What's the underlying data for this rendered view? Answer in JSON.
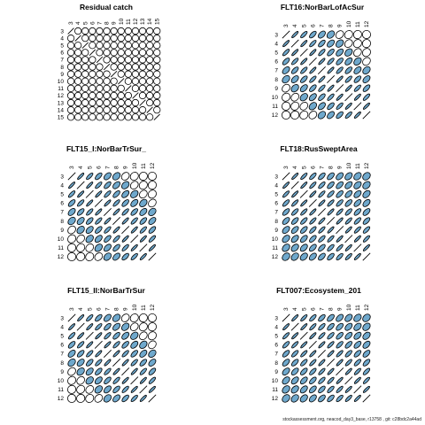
{
  "footer": "stockassessment.org, neacod_day3_base, r13758 , git: c28bdc2a44ad",
  "colors": {
    "shade": "#6fa8cc",
    "outline": "#000000",
    "background": "#ffffff"
  },
  "chart_data": [
    {
      "type": "correlation-ellipse-matrix",
      "title": "Residual catch",
      "ages": [
        3,
        4,
        5,
        6,
        7,
        8,
        9,
        10,
        11,
        12,
        13,
        14,
        15
      ],
      "lower_correlations": [
        [
          0.0
        ],
        [
          0.0,
          0.0
        ],
        [
          0.0,
          0.0,
          0.0
        ],
        [
          0.0,
          0.0,
          0.0,
          0.0
        ],
        [
          0.0,
          0.0,
          0.0,
          0.0,
          0.0
        ],
        [
          0.0,
          0.0,
          0.0,
          0.0,
          0.0,
          0.0
        ],
        [
          0.0,
          0.0,
          0.0,
          0.0,
          0.0,
          0.0,
          0.0
        ],
        [
          0.0,
          0.0,
          0.0,
          0.0,
          0.0,
          0.0,
          0.0,
          0.0
        ],
        [
          0.0,
          0.0,
          0.0,
          0.0,
          0.0,
          0.0,
          0.0,
          0.0,
          0.0
        ],
        [
          0.0,
          0.0,
          0.0,
          0.0,
          0.0,
          0.0,
          0.0,
          0.0,
          0.0,
          0.0
        ],
        [
          0.0,
          0.0,
          0.0,
          0.0,
          0.0,
          0.0,
          0.0,
          0.0,
          0.0,
          0.0,
          0.0
        ],
        [
          0.0,
          0.0,
          0.0,
          0.0,
          0.0,
          0.0,
          0.0,
          0.0,
          0.0,
          0.0,
          0.0,
          0.0
        ]
      ]
    },
    {
      "type": "correlation-ellipse-matrix",
      "title": "FLT16:NorBarLofAcSur",
      "ages": [
        3,
        4,
        5,
        6,
        7,
        8,
        9,
        10,
        11,
        12
      ],
      "lower_correlations": [
        [
          0.92
        ],
        [
          0.85,
          0.92
        ],
        [
          0.75,
          0.85,
          0.92
        ],
        [
          0.6,
          0.75,
          0.85,
          0.92
        ],
        [
          0.45,
          0.6,
          0.75,
          0.85,
          0.92
        ],
        [
          0.3,
          0.45,
          0.6,
          0.75,
          0.85,
          0.92
        ],
        [
          0.15,
          0.3,
          0.45,
          0.6,
          0.75,
          0.85,
          0.92
        ],
        [
          0.05,
          0.15,
          0.3,
          0.45,
          0.6,
          0.75,
          0.85,
          0.92
        ],
        [
          0.0,
          0.05,
          0.15,
          0.3,
          0.45,
          0.6,
          0.75,
          0.85,
          0.92
        ]
      ]
    },
    {
      "type": "correlation-ellipse-matrix",
      "title": "FLT15_I:NorBarTrSur_",
      "ages": [
        3,
        4,
        5,
        6,
        7,
        8,
        9,
        10,
        11,
        12
      ],
      "lower_correlations": [
        [
          0.92
        ],
        [
          0.85,
          0.92
        ],
        [
          0.75,
          0.85,
          0.92
        ],
        [
          0.6,
          0.75,
          0.85,
          0.92
        ],
        [
          0.45,
          0.6,
          0.75,
          0.85,
          0.92
        ],
        [
          0.3,
          0.45,
          0.6,
          0.75,
          0.85,
          0.92
        ],
        [
          0.15,
          0.3,
          0.45,
          0.6,
          0.75,
          0.85,
          0.92
        ],
        [
          0.05,
          0.15,
          0.3,
          0.45,
          0.6,
          0.75,
          0.85,
          0.92
        ],
        [
          0.0,
          0.05,
          0.15,
          0.3,
          0.45,
          0.6,
          0.75,
          0.85,
          0.92
        ]
      ]
    },
    {
      "type": "correlation-ellipse-matrix",
      "title": "FLT18:RusSweptArea",
      "ages": [
        3,
        4,
        5,
        6,
        7,
        8,
        9,
        10,
        11,
        12
      ],
      "lower_correlations": [
        [
          0.92
        ],
        [
          0.88,
          0.92
        ],
        [
          0.82,
          0.88,
          0.92
        ],
        [
          0.75,
          0.82,
          0.88,
          0.92
        ],
        [
          0.68,
          0.75,
          0.82,
          0.88,
          0.92
        ],
        [
          0.6,
          0.68,
          0.75,
          0.82,
          0.88,
          0.92
        ],
        [
          0.52,
          0.6,
          0.68,
          0.75,
          0.82,
          0.88,
          0.92
        ],
        [
          0.45,
          0.52,
          0.6,
          0.68,
          0.75,
          0.82,
          0.88,
          0.92
        ],
        [
          0.38,
          0.45,
          0.52,
          0.6,
          0.68,
          0.75,
          0.82,
          0.88,
          0.92
        ]
      ]
    },
    {
      "type": "correlation-ellipse-matrix",
      "title": "FLT15_II:NorBarTrSur",
      "ages": [
        3,
        4,
        5,
        6,
        7,
        8,
        9,
        10,
        11,
        12
      ],
      "lower_correlations": [
        [
          0.92
        ],
        [
          0.85,
          0.92
        ],
        [
          0.75,
          0.85,
          0.92
        ],
        [
          0.6,
          0.75,
          0.85,
          0.92
        ],
        [
          0.45,
          0.6,
          0.75,
          0.85,
          0.92
        ],
        [
          0.3,
          0.45,
          0.6,
          0.75,
          0.85,
          0.92
        ],
        [
          0.15,
          0.3,
          0.45,
          0.6,
          0.75,
          0.85,
          0.92
        ],
        [
          0.05,
          0.15,
          0.3,
          0.45,
          0.6,
          0.75,
          0.85,
          0.92
        ],
        [
          0.0,
          0.05,
          0.15,
          0.3,
          0.45,
          0.6,
          0.75,
          0.85,
          0.92
        ]
      ]
    },
    {
      "type": "correlation-ellipse-matrix",
      "title": "FLT007:Ecosystem_201",
      "ages": [
        3,
        4,
        5,
        6,
        7,
        8,
        9,
        10,
        11,
        12
      ],
      "lower_correlations": [
        [
          0.92
        ],
        [
          0.88,
          0.92
        ],
        [
          0.82,
          0.88,
          0.92
        ],
        [
          0.75,
          0.82,
          0.88,
          0.92
        ],
        [
          0.68,
          0.75,
          0.82,
          0.88,
          0.92
        ],
        [
          0.6,
          0.68,
          0.75,
          0.82,
          0.88,
          0.92
        ],
        [
          0.52,
          0.6,
          0.68,
          0.75,
          0.82,
          0.88,
          0.92
        ],
        [
          0.45,
          0.52,
          0.6,
          0.68,
          0.75,
          0.82,
          0.88,
          0.92
        ],
        [
          0.38,
          0.45,
          0.52,
          0.6,
          0.68,
          0.75,
          0.82,
          0.88,
          0.92
        ]
      ]
    }
  ]
}
